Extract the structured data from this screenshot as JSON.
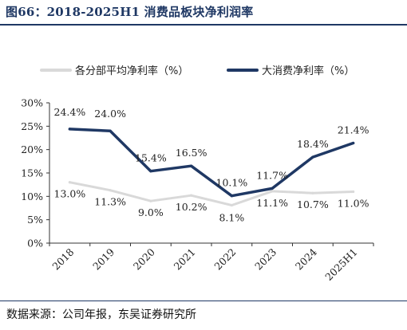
{
  "title": "图66：2018-2025H1 消费品板块净利润率",
  "source": "数据来源：公司年报，东吴证券研究所",
  "colors": {
    "series_a": "#d9d9d9",
    "series_b": "#1f3864",
    "title": "#1f3864"
  },
  "chart_data": {
    "type": "line",
    "categories": [
      "2018",
      "2019",
      "2020",
      "2021",
      "2022",
      "2023",
      "2024",
      "2025H1"
    ],
    "y_ticks": [
      "0%",
      "5%",
      "10%",
      "15%",
      "20%",
      "25%",
      "30%"
    ],
    "ylim": [
      0,
      30
    ],
    "grid": false,
    "legend_position": "top",
    "series": [
      {
        "name": "各分部平均净利率（%）",
        "values": [
          13.0,
          11.3,
          9.0,
          10.2,
          8.1,
          11.1,
          10.7,
          11.0
        ],
        "labels": [
          "13.0%",
          "11.3%",
          "9.0%",
          "10.2%",
          "8.1%",
          "11.1%",
          "10.7%",
          "11.0%"
        ]
      },
      {
        "name": "大消费净利率（%）",
        "values": [
          24.4,
          24.0,
          15.4,
          16.5,
          10.1,
          11.7,
          18.4,
          21.4
        ],
        "labels": [
          "24.4%",
          "24.0%",
          "15.4%",
          "16.5%",
          "10.1%",
          "11.7%",
          "18.4%",
          "21.4%"
        ]
      }
    ]
  }
}
